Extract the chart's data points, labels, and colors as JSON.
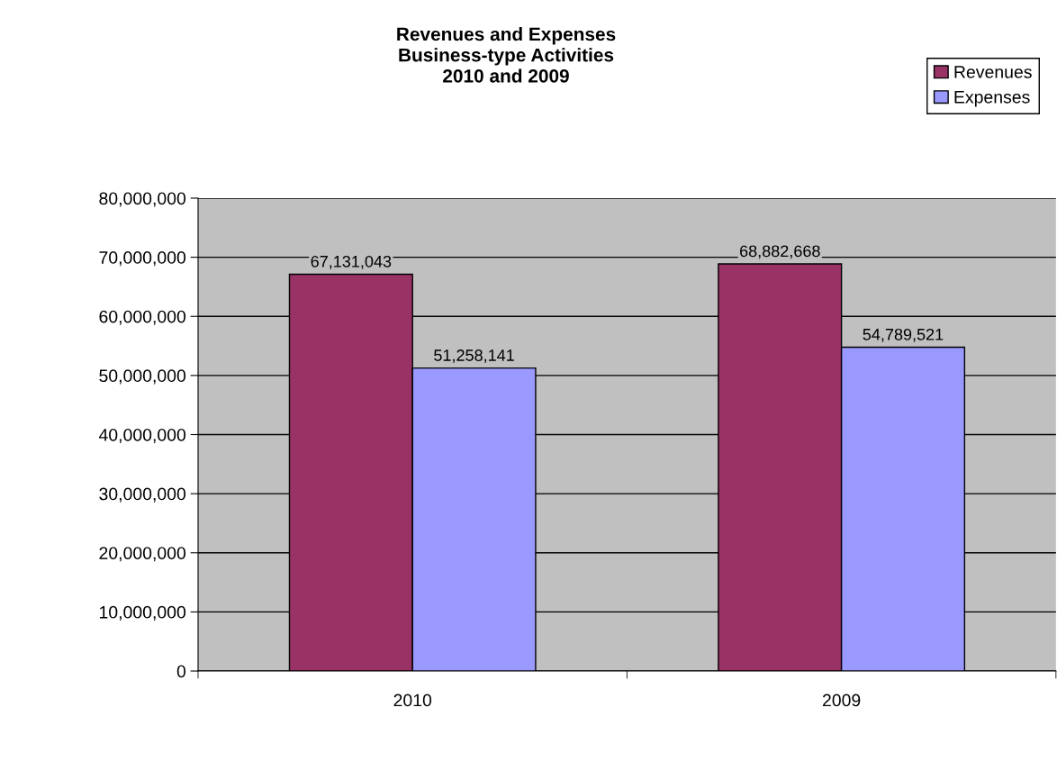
{
  "chart_data": {
    "type": "bar",
    "title": "Revenues and Expenses\nBusiness-type Activities\n2010 and 2009",
    "categories": [
      "2010",
      "2009"
    ],
    "series": [
      {
        "name": "Revenues",
        "color": "#993366",
        "values": [
          67131043,
          68882668
        ],
        "value_labels": [
          "67,131,043",
          "68,882,668"
        ]
      },
      {
        "name": "Expenses",
        "color": "#9999ff",
        "values": [
          51258141,
          54789521
        ],
        "value_labels": [
          "51,258,141",
          "54,789,521"
        ]
      }
    ],
    "ylim": [
      0,
      80000000
    ],
    "yticks": [
      0,
      {
        "value": 10000000,
        "label": "10,000,000"
      },
      {
        "value": 20000000,
        "label": "20,000,000"
      },
      {
        "value": 30000000,
        "label": "30,000,000"
      },
      {
        "value": 40000000,
        "label": "40,000,000"
      },
      {
        "value": 50000000,
        "label": "50,000,000"
      },
      {
        "value": 60000000,
        "label": "60,000,000"
      },
      {
        "value": 70000000,
        "label": "70,000,000"
      },
      {
        "value": 80000000,
        "label": "80,000,000"
      }
    ],
    "grid": "y",
    "legend": "top right"
  }
}
